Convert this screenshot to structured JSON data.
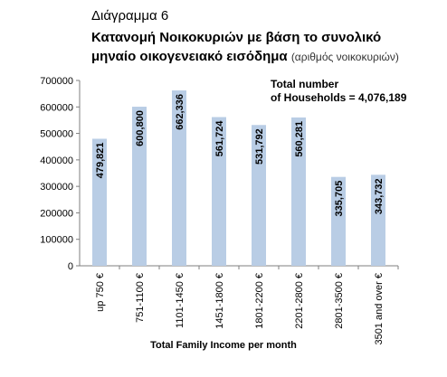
{
  "figure_label": "Διάγραμμα 6",
  "title_line1": "Κατανομή Νοικοκυριών με βάση το συνολικό",
  "title_line2": "μηναίο οικογενειακό εισόδημα",
  "title_units": "(αριθμός νοικοκυριών)",
  "note_line1": "Total number",
  "note_line2": "of Households = 4,076,189",
  "chart_data": {
    "type": "bar",
    "xlabel": "Total Family Income per month",
    "ylabel": "",
    "ylim": [
      0,
      700000
    ],
    "yticks": [
      0,
      100000,
      200000,
      300000,
      400000,
      500000,
      600000,
      700000
    ],
    "ytick_labels": [
      "0",
      "100000",
      "200000",
      "300000",
      "400000",
      "500000",
      "600000",
      "700000"
    ],
    "categories": [
      "up 750 €",
      "751-1100 €",
      "1101-1450 €",
      "1451-1800 €",
      "1801-2200 €",
      "2201-2800 €",
      "2801-3500 €",
      "3501 and over €"
    ],
    "values": [
      479821,
      600800,
      662336,
      561724,
      531792,
      560281,
      335705,
      343732
    ],
    "value_labels": [
      "479,821",
      "600,800",
      "662,336",
      "561,724",
      "531,792",
      "560,281",
      "335,705",
      "343,732"
    ],
    "bar_color": "#b9cde5",
    "grid": false,
    "legend": "none"
  }
}
